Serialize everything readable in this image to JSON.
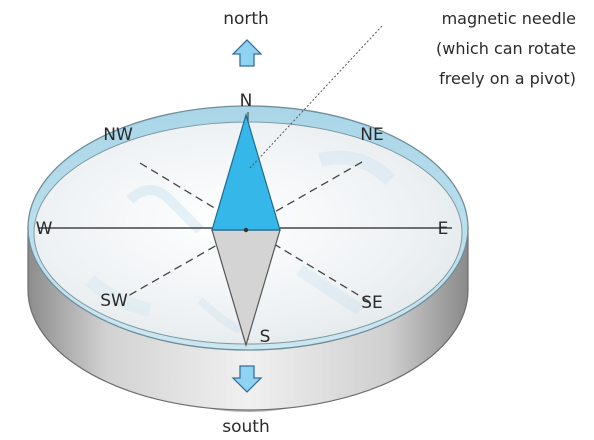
{
  "labels": {
    "north": "north",
    "south": "south",
    "needle_line1": "magnetic needle",
    "needle_line2": "(which can rotate",
    "needle_line3": "freely on a pivot)"
  },
  "directions": {
    "n": "N",
    "s": "S",
    "e": "E",
    "w": "W",
    "ne": "NE",
    "nw": "NW",
    "se": "SE",
    "sw": "SW"
  },
  "colors": {
    "needle_north": "#35b7ea",
    "needle_south": "#d4d4d4",
    "rim_inner": "#9fcfe3",
    "rim_outer": "#b8b8b8",
    "face": "#eef3f6",
    "arrow_fill": "#8fd3f2",
    "arrow_stroke": "#3a6ea0"
  }
}
